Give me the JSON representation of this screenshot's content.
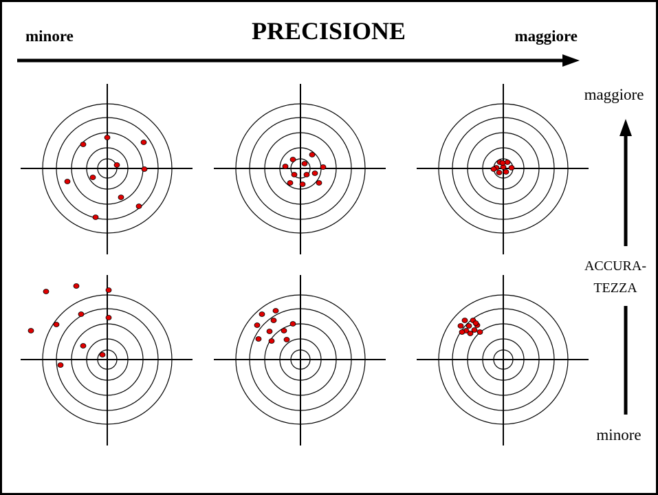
{
  "header": {
    "left": "minore",
    "title": "PRECISIONE",
    "right": "maggiore"
  },
  "side": {
    "top": "maggiore",
    "label": [
      "ACCURA-",
      "TEZZA"
    ],
    "bottom": "minore"
  }
}
